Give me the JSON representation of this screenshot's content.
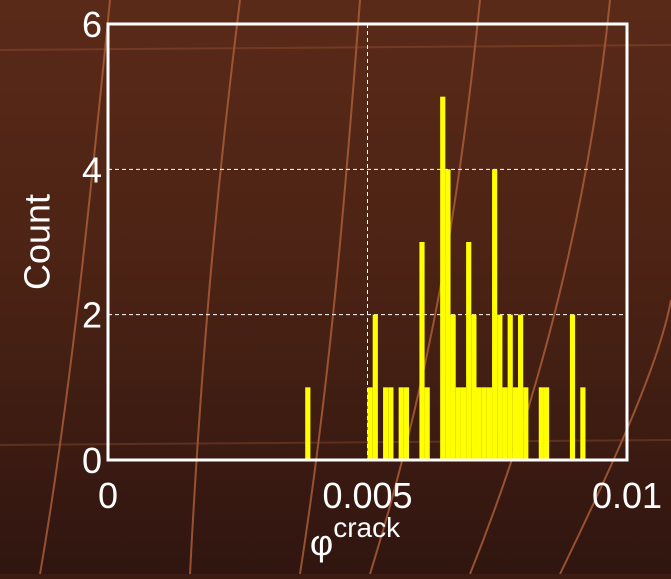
{
  "chart_data": {
    "type": "histogram",
    "y_label": "Count",
    "x_label": {
      "symbol": "φ",
      "superscript": "crack"
    },
    "bins": [
      0.0038,
      0.0039,
      0.004,
      0.0041,
      0.0042,
      0.0043,
      0.0044,
      0.0045,
      0.0046,
      0.0047,
      0.0048,
      0.0049,
      0.005,
      0.0051,
      0.0052,
      0.0053,
      0.0054,
      0.0055,
      0.0056,
      0.0057,
      0.0058,
      0.0059,
      0.006,
      0.0061,
      0.0062,
      0.0063,
      0.0064,
      0.0065,
      0.0066,
      0.0067,
      0.0068,
      0.0069,
      0.007,
      0.0071,
      0.0072,
      0.0073,
      0.0074,
      0.0075,
      0.0076,
      0.0077,
      0.0078,
      0.0079,
      0.008,
      0.0081,
      0.0082,
      0.0083,
      0.0084,
      0.0085,
      0.0086,
      0.0087,
      0.0088,
      0.0089,
      0.009,
      0.0091,
      0.0092,
      0.0093,
      0.0094
    ],
    "counts": [
      1,
      0,
      0,
      0,
      0,
      0,
      0,
      0,
      0,
      0,
      0,
      0,
      1,
      2,
      0,
      1,
      1,
      0,
      1,
      1,
      0,
      0,
      3,
      1,
      0,
      0,
      5,
      4,
      2,
      1,
      1,
      3,
      2,
      1,
      1,
      1,
      4,
      2,
      1,
      2,
      1,
      2,
      1,
      0,
      0,
      1,
      1,
      0,
      0,
      0,
      0,
      2,
      0,
      1,
      0,
      0
    ],
    "color": "#ffff00",
    "xlim": [
      0,
      0.01
    ],
    "xticks": [
      0,
      0.005,
      0.01
    ],
    "ylim": [
      0,
      6
    ],
    "yticks": [
      0,
      2,
      4,
      6
    ],
    "grid": true
  }
}
